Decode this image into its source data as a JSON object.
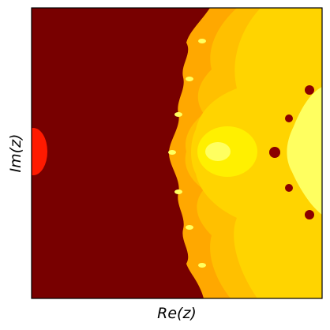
{
  "chart_data": {
    "type": "heatmap",
    "xlabel": "Re(z)",
    "ylabel": "Im(z)",
    "x_ticks": "none",
    "y_ticks": "none",
    "grid": false,
    "legend": "none",
    "colormap": "hot",
    "colors": {
      "outside_dark_red": "#780000",
      "left_bright_blob": "#ff1a00",
      "level_orange": "#ffa800",
      "level_amber": "#ffc000",
      "level_gold": "#ffd400",
      "level_yellow": "#fff000",
      "center_pale": "#ffff60",
      "bulb_dark": "#8a0000",
      "frame": "#000000",
      "background": "#ffffff"
    }
  }
}
